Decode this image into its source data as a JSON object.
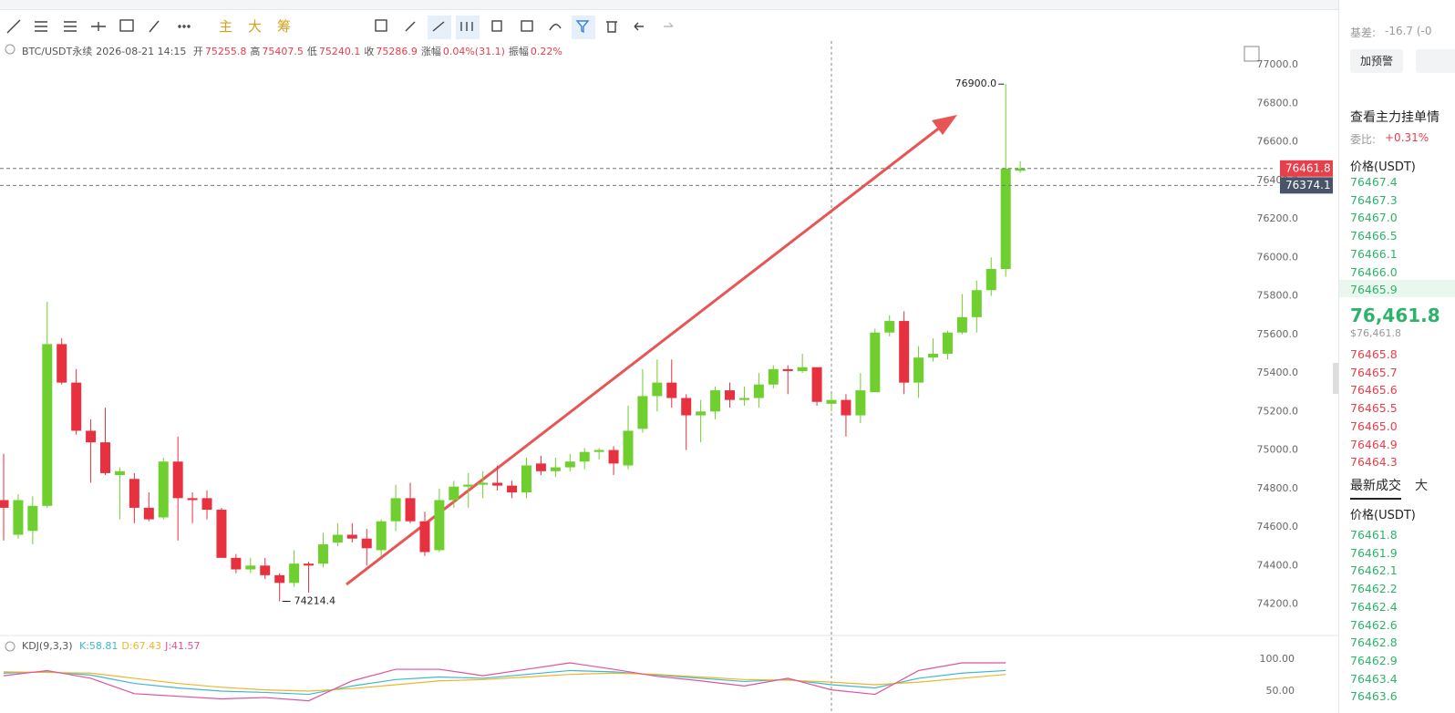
{
  "toolbar": {
    "buttons": [
      "主",
      "大",
      "筹"
    ]
  },
  "chart_header": {
    "symbol": "BTC/USDT永续",
    "time": "2026-08-21 14:15",
    "fields": [
      {
        "label": "开",
        "value": "75255.8"
      },
      {
        "label": "高",
        "value": "75407.5"
      },
      {
        "label": "低",
        "value": "75240.1"
      },
      {
        "label": "收",
        "value": "75286.9"
      },
      {
        "label": "涨幅",
        "value": "0.04%(31.1)"
      },
      {
        "label": "振幅",
        "value": "0.22%"
      }
    ]
  },
  "chart_data": [
    {
      "type": "candlestick",
      "up_color": "#6fcf2e",
      "down_color": "#e8313f",
      "open": [
        74740,
        74560,
        74580,
        74710,
        75550,
        75350,
        75100,
        75040,
        74870,
        74850,
        74700,
        74650,
        74940,
        74750,
        74750,
        74690,
        74440,
        74380,
        74400,
        74350,
        74310,
        74410,
        74410,
        74520,
        74560,
        74540,
        74480,
        74630,
        74750,
        74630,
        74480,
        74740,
        74810,
        74820,
        74830,
        74815,
        74780,
        74930,
        74890,
        74910,
        74940,
        74990,
        75000,
        74920,
        75110,
        75280,
        75350,
        75270,
        75180,
        75200,
        75310,
        75260,
        75270,
        75340,
        75420,
        75410,
        75430,
        75240,
        75260,
        75180,
        75300,
        75610,
        75670,
        75350,
        75480,
        75500,
        75610,
        75690,
        75830,
        75940,
        76450
      ],
      "high": [
        74980,
        74770,
        74760,
        75770,
        75580,
        75420,
        75160,
        75220,
        74910,
        74880,
        74780,
        74960,
        75070,
        74780,
        74790,
        74700,
        74460,
        74440,
        74440,
        74360,
        74480,
        74420,
        74570,
        74620,
        74620,
        74590,
        74640,
        74820,
        74830,
        74680,
        74800,
        74840,
        74880,
        74890,
        74920,
        74840,
        74960,
        74970,
        74960,
        74980,
        75010,
        75010,
        75020,
        75230,
        75420,
        75470,
        75470,
        75290,
        75260,
        75330,
        75350,
        75330,
        75400,
        75440,
        75440,
        75500,
        75430,
        75290,
        75290,
        75400,
        75630,
        75700,
        75720,
        75540,
        75580,
        75620,
        75810,
        75880,
        76000,
        76900,
        76500
      ],
      "low": [
        74530,
        74540,
        74510,
        74700,
        75340,
        75080,
        74830,
        74870,
        74640,
        74620,
        74630,
        74640,
        74530,
        74620,
        74640,
        74440,
        74360,
        74360,
        74330,
        74214.4,
        74290,
        74260,
        74390,
        74500,
        74520,
        74400,
        74450,
        74580,
        74620,
        74450,
        74470,
        74700,
        74700,
        74750,
        74790,
        74750,
        74750,
        74870,
        74860,
        74890,
        74900,
        74950,
        74870,
        74900,
        75090,
        75200,
        75220,
        75000,
        75040,
        75160,
        75220,
        75230,
        75220,
        75320,
        75290,
        75400,
        75230,
        75200,
        75070,
        75140,
        75300,
        75590,
        75290,
        75270,
        75460,
        75470,
        75600,
        75610,
        75800,
        75900,
        76440
      ],
      "close": [
        74700,
        74740,
        74710,
        75550,
        75350,
        75100,
        75040,
        74880,
        74890,
        74700,
        74640,
        74940,
        74750,
        74740,
        74690,
        74440,
        74380,
        74400,
        74350,
        74310,
        74410,
        74400,
        74510,
        74560,
        74540,
        74490,
        74630,
        74750,
        74630,
        74470,
        74740,
        74810,
        74820,
        74830,
        74815,
        74780,
        74920,
        74890,
        74910,
        74940,
        74990,
        75000,
        74930,
        75100,
        75280,
        75350,
        75270,
        75180,
        75200,
        75310,
        75260,
        75270,
        75340,
        75420,
        75410,
        75430,
        75250,
        75260,
        75180,
        75310,
        75610,
        75670,
        75350,
        75480,
        75500,
        75610,
        75690,
        75830,
        75940,
        76461.8,
        76461.8
      ],
      "ylim": [
        74070,
        77100
      ],
      "yticks": [
        {
          "value": 74200,
          "label": "74200.0"
        },
        {
          "value": 74400,
          "label": "74400.0"
        },
        {
          "value": 74600,
          "label": "74600.0"
        },
        {
          "value": 74800,
          "label": "74800.0"
        },
        {
          "value": 75000,
          "label": "75000.0"
        },
        {
          "value": 75200,
          "label": "75200.0"
        },
        {
          "value": 75400,
          "label": "75400.0"
        },
        {
          "value": 75600,
          "label": "75600.0"
        },
        {
          "value": 75800,
          "label": "75800.0"
        },
        {
          "value": 76000,
          "label": "76000.0"
        },
        {
          "value": 76200,
          "label": "76200.0"
        },
        {
          "value": 76400,
          "label": "76400.0"
        },
        {
          "value": 76600,
          "label": "76600.0"
        },
        {
          "value": 76800,
          "label": "76800.0"
        },
        {
          "value": 77000,
          "label": "77000.0"
        }
      ],
      "max_label": {
        "value": 76900,
        "label": "76900.0"
      },
      "min_label": {
        "value": 74214.4,
        "label": "74214.4"
      },
      "price_lines": [
        {
          "value": 76461.8,
          "color": "#e8404a"
        },
        {
          "value": 76374.1,
          "color": "#4a5468"
        }
      ]
    },
    {
      "type": "line",
      "title": "KDJ(9,3,3)",
      "x": [
        0,
        3,
        6,
        9,
        12,
        15,
        18,
        21,
        24,
        27,
        30,
        33,
        36,
        39,
        42,
        45,
        48,
        51,
        54,
        57,
        60,
        63,
        66,
        69
      ],
      "series": [
        {
          "name": "K:58.81",
          "color": "#3fb8cf",
          "values": [
            78,
            80,
            75,
            62,
            55,
            50,
            48,
            45,
            58,
            68,
            72,
            70,
            76,
            82,
            80,
            75,
            70,
            65,
            68,
            60,
            55,
            70,
            78,
            82
          ]
        },
        {
          "name": "D:67.43",
          "color": "#efb52b",
          "values": [
            80,
            79,
            78,
            70,
            62,
            56,
            52,
            50,
            54,
            60,
            66,
            68,
            72,
            76,
            78,
            76,
            72,
            68,
            67,
            64,
            60,
            64,
            70,
            76
          ]
        },
        {
          "name": "J:41.57",
          "color": "#e0529c",
          "values": [
            74,
            82,
            70,
            46,
            42,
            38,
            40,
            35,
            66,
            84,
            84,
            74,
            84,
            94,
            84,
            73,
            66,
            58,
            70,
            52,
            45,
            82,
            94,
            94
          ]
        }
      ],
      "ylim": [
        16,
        111
      ],
      "yticks": [
        {
          "value": 50,
          "label": "50.00"
        },
        {
          "value": 100,
          "label": "100.00"
        }
      ]
    }
  ],
  "side_panel": {
    "basis_label": "基差:",
    "basis_value": "-16.7 (-0",
    "alert_button": "加预警",
    "link": "查看主力挂单情",
    "ratio_label": "委比:",
    "ratio_value": "+0.31%",
    "book_header": "价格(USDT)",
    "asks": [
      "76467.4",
      "76467.3",
      "76467.0",
      "76466.5",
      "76466.1",
      "76466.0",
      "76465.9"
    ],
    "last_price": "76,461.8",
    "last_price_usd": "$76,461.8",
    "bids": [
      "76465.8",
      "76465.7",
      "76465.6",
      "76465.5",
      "76465.0",
      "76464.9",
      "76464.3"
    ],
    "trades_tab": "最新成交",
    "other_tab": "大",
    "trades_header": "价格(USDT)",
    "trades": [
      "76461.8",
      "76461.9",
      "76462.1",
      "76462.2",
      "76462.4",
      "76462.6",
      "76462.8",
      "76462.9",
      "76463.4",
      "76463.6"
    ]
  }
}
